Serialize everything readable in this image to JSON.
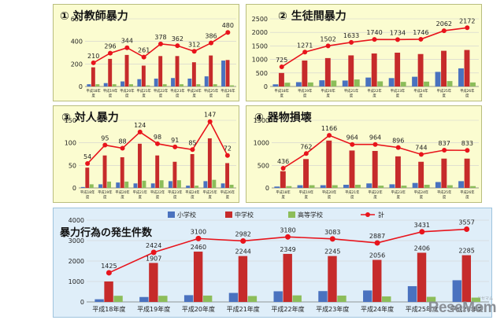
{
  "colors": {
    "elementary": "#4a72bf",
    "junior": "#c62b2b",
    "high": "#8cbd5a",
    "total": "#e8141c"
  },
  "legend": {
    "elementary": "小学校",
    "junior": "中学校",
    "high": "高等学校",
    "total": "計"
  },
  "branding": {
    "logo": "ReseMom",
    "logo_sub": "リセマム"
  },
  "chart_data": [
    {
      "type": "bar",
      "title": "① 対教師暴力",
      "categories": [
        "平成18年度",
        "平成19年度",
        "平成20年度",
        "平成21年度",
        "平成22年度",
        "平成23年度",
        "平成24年度",
        "平成25年度",
        "平成26年度"
      ],
      "ylim": [
        0,
        600
      ],
      "yticks": [
        0,
        200,
        400,
        600
      ],
      "series": [
        {
          "key": "elementary",
          "values": [
            20,
            30,
            45,
            65,
            70,
            75,
            70,
            90,
            230
          ]
        },
        {
          "key": "junior",
          "values": [
            170,
            245,
            280,
            185,
            270,
            270,
            215,
            275,
            235
          ]
        },
        {
          "key": "high",
          "values": [
            20,
            20,
            20,
            10,
            20,
            20,
            20,
            20,
            10
          ]
        }
      ],
      "total": [
        210,
        296,
        344,
        261,
        378,
        362,
        312,
        386,
        480
      ]
    },
    {
      "type": "bar",
      "title": "② 生徒間暴力",
      "categories": [
        "平成18年度",
        "平成19年度",
        "平成20年度",
        "平成21年度",
        "平成22年度",
        "平成23年度",
        "平成24年度",
        "平成25年度",
        "平成26年度"
      ],
      "ylim": [
        0,
        2500
      ],
      "yticks": [
        0,
        500,
        1000,
        1500,
        2000,
        2500
      ],
      "series": [
        {
          "key": "elementary",
          "values": [
            80,
            160,
            230,
            220,
            330,
            310,
            360,
            540,
            670
          ]
        },
        {
          "key": "junior",
          "values": [
            500,
            960,
            1050,
            1150,
            1220,
            1250,
            1200,
            1320,
            1350
          ]
        },
        {
          "key": "high",
          "values": [
            140,
            150,
            220,
            260,
            190,
            170,
            180,
            200,
            150
          ]
        }
      ],
      "total": [
        725,
        1271,
        1502,
        1633,
        1740,
        1734,
        1746,
        2062,
        2172
      ]
    },
    {
      "type": "bar",
      "title": "③ 対人暴力",
      "categories": [
        "平成18年度",
        "平成19年度",
        "平成20年度",
        "平成21年度",
        "平成22年度",
        "平成23年度",
        "平成24年度",
        "平成25年度",
        "平成26年度"
      ],
      "ylim": [
        0,
        150
      ],
      "yticks": [
        0,
        50,
        100,
        150
      ],
      "series": [
        {
          "key": "elementary",
          "values": [
            2,
            8,
            12,
            10,
            10,
            15,
            5,
            15,
            10
          ]
        },
        {
          "key": "junior",
          "values": [
            45,
            72,
            68,
            98,
            72,
            58,
            75,
            110,
            55
          ]
        },
        {
          "key": "high",
          "values": [
            8,
            14,
            14,
            16,
            17,
            17,
            5,
            18,
            7
          ]
        }
      ],
      "total": [
        54,
        95,
        88,
        124,
        98,
        91,
        85,
        147,
        72
      ]
    },
    {
      "type": "bar",
      "title": "④ 器物損壊",
      "categories": [
        "平成18年度",
        "平成19年度",
        "平成20年度",
        "平成21年度",
        "平成22年度",
        "平成23年度",
        "平成24年度",
        "平成25年度",
        "平成26年度"
      ],
      "ylim": [
        0,
        1500
      ],
      "yticks": [
        0,
        500,
        1000,
        1500
      ],
      "series": [
        {
          "key": "elementary",
          "values": [
            30,
            60,
            60,
            70,
            100,
            80,
            110,
            130,
            150
          ]
        },
        {
          "key": "junior",
          "values": [
            370,
            640,
            1050,
            830,
            820,
            700,
            580,
            650,
            650
          ]
        },
        {
          "key": "high",
          "values": [
            40,
            60,
            60,
            70,
            50,
            50,
            70,
            60,
            40
          ]
        }
      ],
      "total": [
        436,
        762,
        1166,
        964,
        964,
        896,
        744,
        837,
        833
      ]
    },
    {
      "type": "bar",
      "title": "暴力行為の発生件数",
      "categories": [
        "平成18年度",
        "平成19年度",
        "平成20年度",
        "平成21年度",
        "平成22年度",
        "平成23年度",
        "平成24年度",
        "平成25年度",
        "平成26年度"
      ],
      "ylim": [
        0,
        4000
      ],
      "yticks": [
        0,
        1000,
        2000,
        3000,
        4000
      ],
      "series": [
        {
          "key": "elementary",
          "values": [
            130,
            240,
            330,
            440,
            520,
            530,
            560,
            770,
            1060
          ]
        },
        {
          "key": "junior",
          "values": [
            1000,
            1907,
            2460,
            2244,
            2349,
            2245,
            2056,
            2406,
            2285
          ]
        },
        {
          "key": "high",
          "values": [
            300,
            300,
            310,
            290,
            320,
            310,
            270,
            250,
            210
          ]
        }
      ],
      "bar_labels": [
        null,
        1907,
        2460,
        2244,
        2349,
        2245,
        2056,
        2406,
        2285
      ],
      "total": [
        1425,
        2424,
        3100,
        2982,
        3180,
        3083,
        2887,
        3431,
        3557
      ]
    }
  ]
}
